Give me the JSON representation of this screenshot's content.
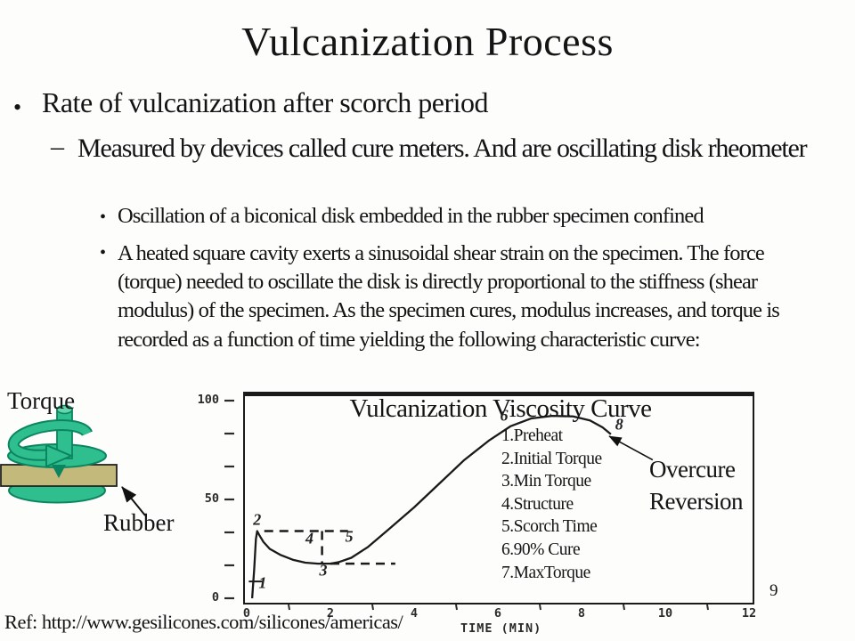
{
  "slide": {
    "title": "Vulcanization Process",
    "page_number": "9",
    "reference": "Ref: http://www.gesilicones.com/silicones/americas/"
  },
  "bullets": {
    "level1": "Rate of vulcanization after scorch period",
    "level1_marker": "•",
    "level2": "Measured by devices called cure meters. And are oscillating disk rheometer",
    "level2_marker": "–",
    "level3_marker": "•",
    "level3a": "Oscillation of a biconical disk embedded in the rubber specimen confined",
    "level3b": "A heated square cavity exerts a sinusoidal shear strain on the specimen. The force (torque) needed to oscillate the disk is directly proportional to the stiffness (shear modulus) of the specimen. As the specimen cures, modulus increases, and torque is recorded as a function of time yielding the following characteristic curve:"
  },
  "diagram": {
    "torque_label": "Torque",
    "rubber_label": "Rubber",
    "colors": {
      "green": "#2fbe8e",
      "light_green": "#63d6ad",
      "dark_green": "#0b8560",
      "tan": "#c2b97b"
    }
  },
  "chart_data": {
    "type": "line",
    "title": "Vulcanization Viscosity Curve",
    "xlabel": "TIME (MIN)",
    "ylabel": "",
    "xlim": [
      0,
      12
    ],
    "ylim": [
      0,
      100
    ],
    "x_ticks": [
      "0",
      "2",
      "4",
      "6",
      "8",
      "10",
      "12"
    ],
    "y_ticks": [
      "100",
      "50",
      "0"
    ],
    "grid": false,
    "legend_position": "inside-right",
    "annotations": [
      "1.Preheat",
      "2.Initial Torque",
      "3.Min Torque",
      "4.Structure",
      "5.Scorch Time",
      "6.90% Cure",
      "7.MaxTorque"
    ],
    "overcure_label": "Overcure Reversion",
    "points": [
      [
        0.13,
        0
      ],
      [
        0.18,
        15
      ],
      [
        0.22,
        30
      ],
      [
        0.25,
        34
      ],
      [
        0.3,
        32
      ],
      [
        0.4,
        28.5
      ],
      [
        0.55,
        25
      ],
      [
        0.8,
        22
      ],
      [
        1.1,
        19.5
      ],
      [
        1.4,
        18
      ],
      [
        1.7,
        17.5
      ],
      [
        2.0,
        17.5
      ],
      [
        2.2,
        18.3
      ],
      [
        2.5,
        20.5
      ],
      [
        2.9,
        26
      ],
      [
        3.4,
        35
      ],
      [
        4.0,
        46
      ],
      [
        4.6,
        58
      ],
      [
        5.2,
        70
      ],
      [
        5.8,
        80
      ],
      [
        6.3,
        87
      ],
      [
        6.8,
        91
      ],
      [
        7.3,
        92.3
      ],
      [
        7.8,
        92
      ],
      [
        8.2,
        90
      ],
      [
        8.5,
        86.5
      ],
      [
        8.7,
        83
      ]
    ],
    "curve_markers": [
      {
        "label": "1",
        "x": 0.38,
        "y": 7.5
      },
      {
        "label": "2",
        "x": 0.25,
        "y": 39.5
      },
      {
        "label": "3",
        "x": 1.83,
        "y": 14
      },
      {
        "label": "4",
        "x": 1.5,
        "y": 30
      },
      {
        "label": "5",
        "x": 2.45,
        "y": 31
      },
      {
        "label": "6",
        "x": 6.15,
        "y": 92.5
      },
      {
        "label": "8",
        "x": 8.9,
        "y": 88
      }
    ],
    "marker_tick": {
      "from": [
        0.05,
        8.5
      ],
      "to": [
        0.37,
        8.5
      ]
    },
    "dashed_guides": [
      {
        "from": [
          0.42,
          34
        ],
        "to": [
          2.42,
          34
        ]
      },
      {
        "from": [
          1.8,
          34
        ],
        "to": [
          1.8,
          17.5
        ]
      },
      {
        "from": [
          2.0,
          17.5
        ],
        "to": [
          3.55,
          17.5
        ]
      }
    ],
    "reversion_arrow": {
      "from": [
        9.7,
        70
      ],
      "to": [
        8.66,
        82
      ]
    }
  }
}
